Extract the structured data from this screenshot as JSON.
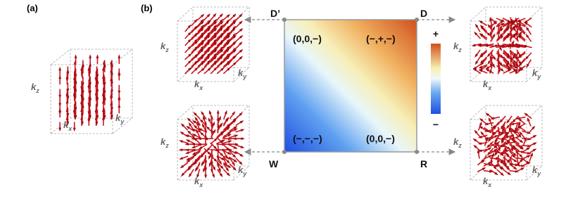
{
  "panel_a": {
    "label": "(a)"
  },
  "panel_b": {
    "label": "(b)",
    "corners": {
      "top_left": "D’",
      "top_right": "D",
      "bottom_left": "W",
      "bottom_right": "R"
    },
    "regions": {
      "top_left": "(0,0,−)",
      "top_right": "(−,+,−)",
      "bottom_left": "(−,−,−)",
      "bottom_right": "(0,0,−)"
    },
    "colorbar": {
      "top": "+",
      "bottom": "−"
    }
  },
  "cube_axis_labels": {
    "z": {
      "base": "k",
      "sub": "z"
    },
    "x": {
      "base": "k",
      "sub": "x"
    },
    "y": {
      "base": "k",
      "sub": "y"
    }
  }
}
